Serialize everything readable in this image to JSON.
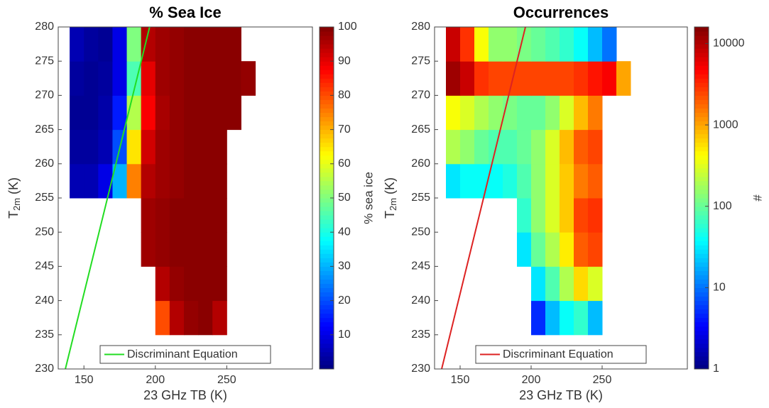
{
  "chart_data": [
    {
      "type": "heatmap",
      "title": "% Sea Ice",
      "xlabel": "23 GHz TB (K)",
      "ylabel": {
        "main": "T",
        "sub": "2m",
        "unit": "(K)"
      },
      "xlim": [
        132,
        310
      ],
      "ylim": [
        230,
        280
      ],
      "xticks": [
        150,
        200,
        250
      ],
      "yticks": [
        230,
        235,
        240,
        245,
        250,
        255,
        260,
        265,
        270,
        275,
        280
      ],
      "x_bins": [
        140,
        150,
        160,
        170,
        180,
        190,
        200,
        210,
        220,
        230,
        240,
        250,
        260,
        270
      ],
      "y_bins": [
        235,
        240,
        245,
        250,
        255,
        260,
        265,
        270,
        275,
        280
      ],
      "values": [
        [
          null,
          null,
          null,
          null,
          null,
          null,
          80,
          95,
          98,
          99,
          95,
          null,
          null
        ],
        [
          null,
          null,
          null,
          null,
          null,
          null,
          95,
          98,
          99,
          99,
          99,
          null,
          null
        ],
        [
          null,
          null,
          null,
          null,
          null,
          97,
          98,
          99,
          99,
          99,
          99,
          null,
          null
        ],
        [
          null,
          null,
          null,
          null,
          null,
          97,
          98,
          99,
          99,
          99,
          99,
          null,
          null
        ],
        [
          5,
          5,
          10,
          30,
          75,
          95,
          97,
          98,
          99,
          99,
          99,
          null,
          null
        ],
        [
          3,
          3,
          5,
          20,
          65,
          92,
          97,
          98,
          99,
          99,
          99,
          null,
          null
        ],
        [
          2,
          2,
          4,
          15,
          55,
          88,
          96,
          98,
          99,
          99,
          99,
          99,
          null
        ],
        [
          3,
          2,
          3,
          10,
          45,
          90,
          97,
          98,
          99,
          99,
          99,
          99,
          98
        ],
        [
          5,
          3,
          2,
          10,
          50,
          95,
          97,
          98,
          99,
          99,
          99,
          99,
          null
        ]
      ],
      "colorbar": {
        "label": "% sea ice",
        "lim": [
          0,
          100
        ],
        "ticks": [
          10,
          20,
          30,
          40,
          50,
          60,
          70,
          80,
          90,
          100
        ],
        "log": false
      },
      "line": {
        "name": "Discriminant Equation",
        "color": "#22dd22",
        "x": [
          137,
          196
        ],
        "y": [
          230,
          280
        ]
      }
    },
    {
      "type": "heatmap",
      "title": "Occurrences",
      "xlabel": "23 GHz TB (K)",
      "ylabel": {
        "main": "T",
        "sub": "2m",
        "unit": "(K)"
      },
      "xlim": [
        132,
        310
      ],
      "ylim": [
        230,
        280
      ],
      "xticks": [
        150,
        200,
        250
      ],
      "yticks": [
        230,
        235,
        240,
        245,
        250,
        255,
        260,
        265,
        270,
        275,
        280
      ],
      "x_bins": [
        140,
        150,
        160,
        170,
        180,
        190,
        200,
        210,
        220,
        230,
        240,
        250,
        260,
        270
      ],
      "y_bins": [
        235,
        240,
        245,
        250,
        255,
        260,
        265,
        270,
        275,
        280
      ],
      "values": [
        [
          null,
          null,
          null,
          null,
          null,
          null,
          5,
          20,
          40,
          60,
          20,
          null,
          null
        ],
        [
          null,
          null,
          null,
          null,
          null,
          null,
          30,
          80,
          200,
          600,
          300,
          null,
          null
        ],
        [
          null,
          null,
          null,
          null,
          null,
          30,
          100,
          200,
          500,
          2000,
          2500,
          null,
          null
        ],
        [
          null,
          null,
          null,
          null,
          null,
          60,
          150,
          300,
          700,
          2500,
          3000,
          null,
          null
        ],
        [
          30,
          40,
          40,
          40,
          50,
          80,
          150,
          300,
          700,
          1500,
          2000,
          null,
          null
        ],
        [
          200,
          150,
          100,
          80,
          80,
          100,
          150,
          300,
          800,
          2000,
          2500,
          null,
          null
        ],
        [
          400,
          300,
          200,
          150,
          120,
          100,
          100,
          150,
          300,
          800,
          1500,
          null,
          null
        ],
        [
          12000,
          8000,
          3000,
          2500,
          2500,
          2500,
          2500,
          2500,
          2500,
          3000,
          4000,
          5000,
          1000
        ],
        [
          8000,
          3000,
          400,
          150,
          150,
          120,
          100,
          80,
          60,
          40,
          20,
          10,
          null
        ]
      ],
      "colorbar": {
        "label": "#",
        "lim": [
          1,
          16000
        ],
        "ticks": [
          1,
          10,
          100,
          1000,
          10000
        ],
        "log": true
      },
      "line": {
        "name": "Discriminant Equation",
        "color": "#dd2222",
        "x": [
          137,
          196
        ],
        "y": [
          230,
          280
        ]
      }
    }
  ]
}
